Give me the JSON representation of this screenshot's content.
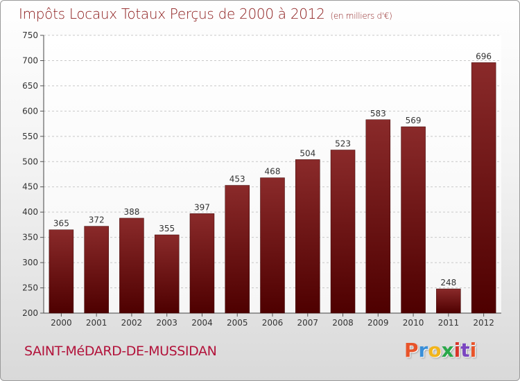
{
  "title": "Impôts Locaux Totaux Perçus de 2000 à 2012",
  "unit": "(en milliers d'€)",
  "place": "SAINT-MéDARD-DE-MUSSIDAN",
  "brand": {
    "letters": [
      "P",
      "r",
      "o",
      "x",
      "i",
      "t",
      "i"
    ],
    "colors": [
      "#e8542a",
      "#3a8fd8",
      "#f2b51c",
      "#2aa84a",
      "#d8342a",
      "#7a45c0",
      "#e8542a"
    ]
  },
  "chart_data": {
    "type": "bar",
    "title": "Impôts Locaux Totaux Perçus de 2000 à 2012",
    "ylabel": "(en milliers d'€)",
    "categories": [
      "2000",
      "2001",
      "2002",
      "2003",
      "2004",
      "2005",
      "2006",
      "2007",
      "2008",
      "2009",
      "2010",
      "2011",
      "2012"
    ],
    "values": [
      365,
      372,
      388,
      355,
      397,
      453,
      468,
      504,
      523,
      583,
      569,
      248,
      696
    ],
    "ylim": [
      200,
      750
    ],
    "yticks": [
      200,
      250,
      300,
      350,
      400,
      450,
      500,
      550,
      600,
      650,
      700,
      750
    ],
    "grid": true,
    "bar_color": "#7a1212",
    "label_color": "#333333"
  }
}
